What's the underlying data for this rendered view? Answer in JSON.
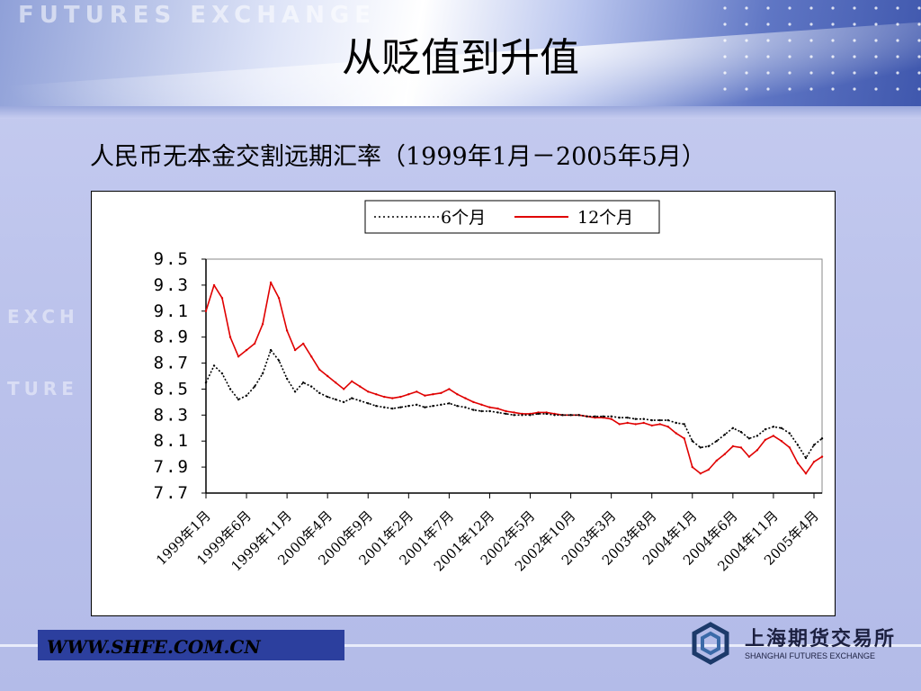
{
  "watermark_text": "FUTURES EXCHANGE",
  "side_watermark": [
    "EXCH",
    "TURE"
  ],
  "title": "从贬值到升值",
  "subtitle": "人民币无本金交割远期汇率（1999年1月－2005年5月）",
  "footer": {
    "url": "WWW.SHFE.COM.CN"
  },
  "logo": {
    "name_cn": "上海期货交易所",
    "name_en": "SHANGHAI FUTURES EXCHANGE",
    "icon": "hexagon-logo-icon"
  },
  "colors": {
    "series_6m": "#000000",
    "series_12m": "#e00000",
    "footer_bar": "#2c3f9e"
  },
  "chart_data": {
    "type": "line",
    "ylim": [
      7.7,
      9.5
    ],
    "yticks": [
      "9.5",
      "9.3",
      "9.1",
      "8.9",
      "8.7",
      "8.5",
      "8.3",
      "8.1",
      "7.9",
      "7.7"
    ],
    "xticks": [
      "1999年1月",
      "1999年6月",
      "1999年11月",
      "2000年4月",
      "2000年9月",
      "2001年2月",
      "2001年7月",
      "2001年12月",
      "2002年5月",
      "2002年10月",
      "2003年3月",
      "2003年8月",
      "2004年1月",
      "2004年6月",
      "2004年11月",
      "2005年4月"
    ],
    "legend": {
      "placement": "top-center",
      "labels": [
        "6个月",
        "12个月"
      ]
    },
    "x_months": [
      "1999-01",
      "1999-02",
      "1999-03",
      "1999-04",
      "1999-05",
      "1999-06",
      "1999-07",
      "1999-08",
      "1999-09",
      "1999-10",
      "1999-11",
      "1999-12",
      "2000-01",
      "2000-02",
      "2000-03",
      "2000-04",
      "2000-05",
      "2000-06",
      "2000-07",
      "2000-08",
      "2000-09",
      "2000-10",
      "2000-11",
      "2000-12",
      "2001-01",
      "2001-02",
      "2001-03",
      "2001-04",
      "2001-05",
      "2001-06",
      "2001-07",
      "2001-08",
      "2001-09",
      "2001-10",
      "2001-11",
      "2001-12",
      "2002-01",
      "2002-02",
      "2002-03",
      "2002-04",
      "2002-05",
      "2002-06",
      "2002-07",
      "2002-08",
      "2002-09",
      "2002-10",
      "2002-11",
      "2002-12",
      "2003-01",
      "2003-02",
      "2003-03",
      "2003-04",
      "2003-05",
      "2003-06",
      "2003-07",
      "2003-08",
      "2003-09",
      "2003-10",
      "2003-11",
      "2003-12",
      "2004-01",
      "2004-02",
      "2004-03",
      "2004-04",
      "2004-05",
      "2004-06",
      "2004-07",
      "2004-08",
      "2004-09",
      "2004-10",
      "2004-11",
      "2004-12",
      "2005-01",
      "2005-02",
      "2005-03",
      "2005-04",
      "2005-05"
    ],
    "series": [
      {
        "name": "6个月",
        "style": "dotted",
        "values": [
          8.55,
          8.68,
          8.62,
          8.5,
          8.42,
          8.45,
          8.52,
          8.62,
          8.8,
          8.72,
          8.58,
          8.48,
          8.55,
          8.52,
          8.47,
          8.44,
          8.42,
          8.4,
          8.43,
          8.41,
          8.39,
          8.37,
          8.36,
          8.35,
          8.36,
          8.37,
          8.38,
          8.36,
          8.37,
          8.38,
          8.39,
          8.37,
          8.36,
          8.34,
          8.33,
          8.33,
          8.32,
          8.31,
          8.3,
          8.3,
          8.3,
          8.31,
          8.31,
          8.3,
          8.3,
          8.3,
          8.3,
          8.29,
          8.29,
          8.29,
          8.29,
          8.28,
          8.28,
          8.27,
          8.27,
          8.26,
          8.26,
          8.26,
          8.24,
          8.23,
          8.1,
          8.05,
          8.06,
          8.1,
          8.15,
          8.2,
          8.17,
          8.12,
          8.14,
          8.19,
          8.21,
          8.2,
          8.16,
          8.07,
          7.97,
          8.07,
          8.12
        ]
      },
      {
        "name": "12个月",
        "style": "solid",
        "values": [
          9.1,
          9.3,
          9.2,
          8.9,
          8.75,
          8.8,
          8.85,
          9.0,
          9.32,
          9.2,
          8.95,
          8.8,
          8.85,
          8.75,
          8.65,
          8.6,
          8.55,
          8.5,
          8.56,
          8.52,
          8.48,
          8.46,
          8.44,
          8.43,
          8.44,
          8.46,
          8.48,
          8.45,
          8.46,
          8.47,
          8.5,
          8.46,
          8.43,
          8.4,
          8.38,
          8.36,
          8.35,
          8.33,
          8.32,
          8.31,
          8.31,
          8.32,
          8.32,
          8.31,
          8.3,
          8.3,
          8.3,
          8.29,
          8.28,
          8.28,
          8.27,
          8.23,
          8.24,
          8.23,
          8.24,
          8.22,
          8.23,
          8.21,
          8.16,
          8.12,
          7.9,
          7.85,
          7.88,
          7.95,
          8.0,
          8.06,
          8.05,
          7.98,
          8.03,
          8.11,
          8.14,
          8.1,
          8.05,
          7.93,
          7.85,
          7.94,
          7.98
        ]
      }
    ]
  }
}
